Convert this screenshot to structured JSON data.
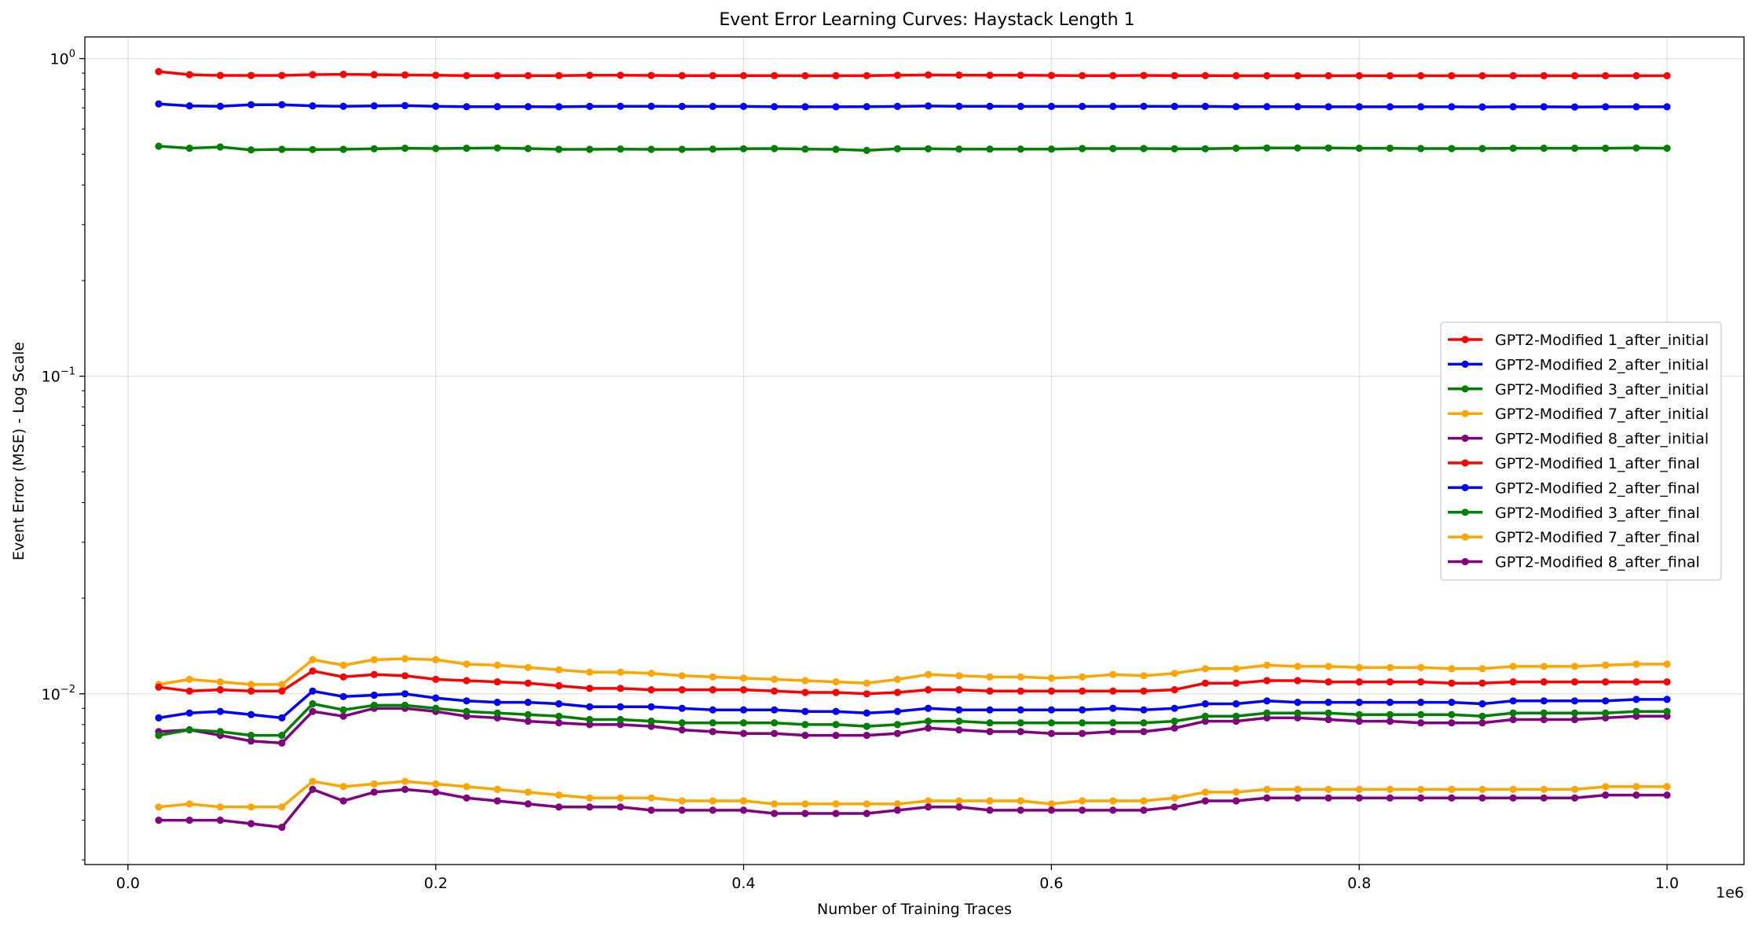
{
  "chart_data": {
    "type": "line",
    "title": "Event Error Learning Curves: Haystack Length 1",
    "xlabel": "Number of Training Traces",
    "ylabel": "Event Error (MSE) - Log Scale",
    "x_offset_label": "1e6",
    "xlim": [
      -0.028,
      1.05
    ],
    "ylim": [
      0.0029,
      1.17
    ],
    "yscale": "log",
    "grid": true,
    "legend_position": "center-right",
    "x_ticks": [
      {
        "value": 0.0,
        "label": "0.0"
      },
      {
        "value": 0.2,
        "label": "0.2"
      },
      {
        "value": 0.4,
        "label": "0.4"
      },
      {
        "value": 0.6,
        "label": "0.6"
      },
      {
        "value": 0.8,
        "label": "0.8"
      },
      {
        "value": 1.0,
        "label": "1.0"
      }
    ],
    "y_ticks": [
      {
        "value": 0.01,
        "base": "10",
        "exp": "−2"
      },
      {
        "value": 0.1,
        "base": "10",
        "exp": "−1"
      },
      {
        "value": 1,
        "base": "10",
        "exp": "0"
      }
    ],
    "x": [
      0.02,
      0.04,
      0.06,
      0.08,
      0.1,
      0.12,
      0.14,
      0.16,
      0.18,
      0.2,
      0.22,
      0.24,
      0.26,
      0.28,
      0.3,
      0.32,
      0.34,
      0.36,
      0.38,
      0.4,
      0.42,
      0.44,
      0.46,
      0.48,
      0.5,
      0.52,
      0.54,
      0.56,
      0.58,
      0.6,
      0.62,
      0.64,
      0.66,
      0.68,
      0.7,
      0.72,
      0.74,
      0.76,
      0.78,
      0.8,
      0.82,
      0.84,
      0.86,
      0.88,
      0.9,
      0.92,
      0.94,
      0.96,
      0.98,
      1.0
    ],
    "series": [
      {
        "name": "GPT2-Modified 1_after_initial",
        "color": "#ff0000",
        "values": [
          0.91,
          0.89,
          0.885,
          0.885,
          0.885,
          0.89,
          0.892,
          0.89,
          0.888,
          0.886,
          0.884,
          0.884,
          0.884,
          0.884,
          0.886,
          0.886,
          0.885,
          0.884,
          0.884,
          0.884,
          0.884,
          0.883,
          0.883,
          0.884,
          0.886,
          0.888,
          0.887,
          0.886,
          0.886,
          0.885,
          0.884,
          0.884,
          0.885,
          0.884,
          0.884,
          0.883,
          0.883,
          0.883,
          0.883,
          0.883,
          0.883,
          0.883,
          0.883,
          0.883,
          0.883,
          0.883,
          0.883,
          0.883,
          0.883,
          0.883
        ]
      },
      {
        "name": "GPT2-Modified 2_after_initial",
        "color": "#0000ff",
        "values": [
          0.72,
          0.71,
          0.708,
          0.716,
          0.716,
          0.71,
          0.708,
          0.71,
          0.711,
          0.708,
          0.706,
          0.706,
          0.706,
          0.705,
          0.707,
          0.708,
          0.708,
          0.707,
          0.707,
          0.707,
          0.706,
          0.705,
          0.705,
          0.706,
          0.707,
          0.709,
          0.708,
          0.708,
          0.707,
          0.707,
          0.707,
          0.707,
          0.708,
          0.707,
          0.707,
          0.706,
          0.706,
          0.706,
          0.705,
          0.705,
          0.705,
          0.705,
          0.705,
          0.704,
          0.705,
          0.705,
          0.704,
          0.705,
          0.705,
          0.705
        ]
      },
      {
        "name": "GPT2-Modified 3_after_initial",
        "color": "#008000",
        "values": [
          0.53,
          0.522,
          0.527,
          0.516,
          0.518,
          0.517,
          0.518,
          0.52,
          0.522,
          0.521,
          0.522,
          0.523,
          0.521,
          0.518,
          0.518,
          0.519,
          0.518,
          0.518,
          0.519,
          0.52,
          0.521,
          0.519,
          0.518,
          0.514,
          0.52,
          0.52,
          0.519,
          0.519,
          0.519,
          0.519,
          0.521,
          0.521,
          0.521,
          0.52,
          0.52,
          0.522,
          0.523,
          0.523,
          0.523,
          0.522,
          0.522,
          0.521,
          0.521,
          0.521,
          0.522,
          0.522,
          0.522,
          0.522,
          0.523,
          0.522
        ]
      },
      {
        "name": "GPT2-Modified 7_after_initial",
        "color": "#ffa500",
        "values": [
          0.0107,
          0.0111,
          0.0109,
          0.0107,
          0.0107,
          0.0128,
          0.0123,
          0.0128,
          0.0129,
          0.0128,
          0.0124,
          0.0123,
          0.0121,
          0.0119,
          0.0117,
          0.0117,
          0.0116,
          0.0114,
          0.0113,
          0.0112,
          0.0111,
          0.011,
          0.0109,
          0.0108,
          0.0111,
          0.0115,
          0.0114,
          0.0113,
          0.0113,
          0.0112,
          0.0113,
          0.0115,
          0.0114,
          0.0116,
          0.012,
          0.012,
          0.0123,
          0.0122,
          0.0122,
          0.0121,
          0.0121,
          0.0121,
          0.012,
          0.012,
          0.0122,
          0.0122,
          0.0122,
          0.0123,
          0.0124,
          0.0124
        ]
      },
      {
        "name": "GPT2-Modified 8_after_initial",
        "color": "#800080",
        "values": [
          0.0076,
          0.0077,
          0.0074,
          0.0071,
          0.007,
          0.0088,
          0.0085,
          0.009,
          0.009,
          0.0088,
          0.0085,
          0.0084,
          0.0082,
          0.0081,
          0.008,
          0.008,
          0.0079,
          0.0077,
          0.0076,
          0.0075,
          0.0075,
          0.0074,
          0.0074,
          0.0074,
          0.0075,
          0.0078,
          0.0077,
          0.0076,
          0.0076,
          0.0075,
          0.0075,
          0.0076,
          0.0076,
          0.0078,
          0.0082,
          0.0082,
          0.0084,
          0.0084,
          0.0083,
          0.0082,
          0.0082,
          0.0081,
          0.0081,
          0.0081,
          0.0083,
          0.0083,
          0.0083,
          0.0084,
          0.0085,
          0.0085
        ]
      },
      {
        "name": "GPT2-Modified 1_after_final",
        "color": "#ff0000",
        "values": [
          0.0105,
          0.0102,
          0.0103,
          0.0102,
          0.0102,
          0.0118,
          0.0113,
          0.0115,
          0.0114,
          0.0111,
          0.011,
          0.0109,
          0.0108,
          0.0106,
          0.0104,
          0.0104,
          0.0103,
          0.0103,
          0.0103,
          0.0103,
          0.0102,
          0.0101,
          0.0101,
          0.01,
          0.0101,
          0.0103,
          0.0103,
          0.0102,
          0.0102,
          0.0102,
          0.0102,
          0.0102,
          0.0102,
          0.0103,
          0.0108,
          0.0108,
          0.011,
          0.011,
          0.0109,
          0.0109,
          0.0109,
          0.0109,
          0.0108,
          0.0108,
          0.0109,
          0.0109,
          0.0109,
          0.0109,
          0.0109,
          0.0109
        ]
      },
      {
        "name": "GPT2-Modified 2_after_final",
        "color": "#0000ff",
        "values": [
          0.0084,
          0.0087,
          0.0088,
          0.0086,
          0.0084,
          0.0102,
          0.0098,
          0.0099,
          0.01,
          0.0097,
          0.0095,
          0.0094,
          0.0094,
          0.0093,
          0.0091,
          0.0091,
          0.0091,
          0.009,
          0.0089,
          0.0089,
          0.0089,
          0.0088,
          0.0088,
          0.0087,
          0.0088,
          0.009,
          0.0089,
          0.0089,
          0.0089,
          0.0089,
          0.0089,
          0.009,
          0.0089,
          0.009,
          0.0093,
          0.0093,
          0.0095,
          0.0094,
          0.0094,
          0.0094,
          0.0094,
          0.0094,
          0.0094,
          0.0093,
          0.0095,
          0.0095,
          0.0095,
          0.0095,
          0.0096,
          0.0096
        ]
      },
      {
        "name": "GPT2-Modified 3_after_final",
        "color": "#008000",
        "values": [
          0.0074,
          0.0077,
          0.0076,
          0.0074,
          0.0074,
          0.0093,
          0.0089,
          0.0092,
          0.0092,
          0.009,
          0.0088,
          0.0087,
          0.0086,
          0.0085,
          0.0083,
          0.0083,
          0.0082,
          0.0081,
          0.0081,
          0.0081,
          0.0081,
          0.008,
          0.008,
          0.0079,
          0.008,
          0.0082,
          0.0082,
          0.0081,
          0.0081,
          0.0081,
          0.0081,
          0.0081,
          0.0081,
          0.0082,
          0.0085,
          0.0085,
          0.0087,
          0.0087,
          0.0087,
          0.0086,
          0.0086,
          0.0086,
          0.0086,
          0.0085,
          0.0087,
          0.0087,
          0.0087,
          0.0087,
          0.0088,
          0.0088
        ]
      },
      {
        "name": "GPT2-Modified 7_after_final",
        "color": "#ffa500",
        "values": [
          0.0044,
          0.0045,
          0.0044,
          0.0044,
          0.0044,
          0.0053,
          0.0051,
          0.0052,
          0.0053,
          0.0052,
          0.0051,
          0.005,
          0.0049,
          0.0048,
          0.0047,
          0.0047,
          0.0047,
          0.0046,
          0.0046,
          0.0046,
          0.0045,
          0.0045,
          0.0045,
          0.0045,
          0.0045,
          0.0046,
          0.0046,
          0.0046,
          0.0046,
          0.0045,
          0.0046,
          0.0046,
          0.0046,
          0.0047,
          0.0049,
          0.0049,
          0.005,
          0.005,
          0.005,
          0.005,
          0.005,
          0.005,
          0.005,
          0.005,
          0.005,
          0.005,
          0.005,
          0.0051,
          0.0051,
          0.0051
        ]
      },
      {
        "name": "GPT2-Modified 8_after_final",
        "color": "#800080",
        "values": [
          0.004,
          0.004,
          0.004,
          0.0039,
          0.0038,
          0.005,
          0.0046,
          0.0049,
          0.005,
          0.0049,
          0.0047,
          0.0046,
          0.0045,
          0.0044,
          0.0044,
          0.0044,
          0.0043,
          0.0043,
          0.0043,
          0.0043,
          0.0042,
          0.0042,
          0.0042,
          0.0042,
          0.0043,
          0.0044,
          0.0044,
          0.0043,
          0.0043,
          0.0043,
          0.0043,
          0.0043,
          0.0043,
          0.0044,
          0.0046,
          0.0046,
          0.0047,
          0.0047,
          0.0047,
          0.0047,
          0.0047,
          0.0047,
          0.0047,
          0.0047,
          0.0047,
          0.0047,
          0.0047,
          0.0048,
          0.0048,
          0.0048
        ]
      }
    ]
  }
}
